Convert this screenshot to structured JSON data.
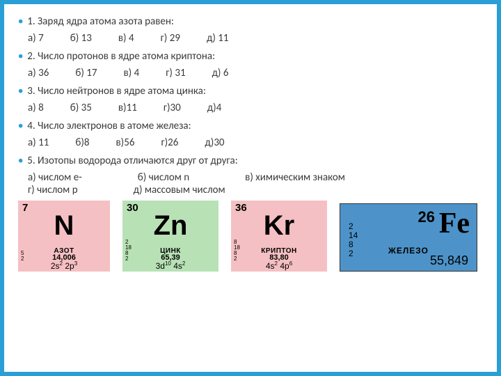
{
  "questions": [
    {
      "text": "1. Заряд ядра атома азота равен:",
      "options": [
        "а) 7",
        "б) 13",
        "в) 4",
        "г) 29",
        "д) 11"
      ]
    },
    {
      "text": "2. Число протонов в ядре атома криптона:",
      "options": [
        "а) 36",
        "б) 17",
        "в) 4",
        "г) 31",
        "д) 6"
      ]
    },
    {
      "text": "3. Число нейтронов в ядре атома цинка:",
      "options": [
        "а) 8",
        "б) 35",
        "в)11",
        "г)30",
        "д)4"
      ]
    },
    {
      "text": "4. Число электронов в атоме железа:",
      "options": [
        "а) 11",
        "б)8",
        "в)56",
        "г)26",
        "д)30"
      ]
    },
    {
      "text": "5. Изотопы водорода отличаются друг от друга:",
      "options_row1": [
        "а) числом е-",
        "б) числом n",
        "в) химическим знаком"
      ],
      "options_row2": [
        "г) числом р",
        "д) массовым числом"
      ]
    }
  ],
  "tiles": {
    "n": {
      "number": "7",
      "symbol": "N",
      "name": "АЗОТ",
      "mass": "14,006",
      "config_a": "2s",
      "config_a_sup": "2",
      "config_b": "2p",
      "config_b_sup": "3",
      "shells": [
        "5",
        "2"
      ],
      "bg_color": "#f5c0c3"
    },
    "zn": {
      "number": "30",
      "symbol": "Zn",
      "name": "ЦИНК",
      "mass": "65,39",
      "config_a": "3d",
      "config_a_sup": "10",
      "config_b": "4s",
      "config_b_sup": "2",
      "shells": [
        "2",
        "18",
        "8",
        "2"
      ],
      "bg_color": "#b8e2b5"
    },
    "kr": {
      "number": "36",
      "symbol": "Kr",
      "name": "КРИПТОН",
      "mass": "83,80",
      "config_a": "4s",
      "config_a_sup": "2",
      "config_b": "4p",
      "config_b_sup": "6",
      "shells": [
        "8",
        "18",
        "8",
        "2"
      ],
      "bg_color": "#f5c0c3"
    },
    "fe": {
      "number": "26",
      "symbol": "Fe",
      "name": "ЖЕЛЕЗО",
      "mass": "55,849",
      "shells": [
        "2",
        "14",
        "8",
        "2"
      ],
      "bg_color": "#4d93c9"
    }
  },
  "style": {
    "page_bg": "#2a9fd6",
    "slide_bg": "#ffffff",
    "bullet_color": "#2a9fd6",
    "text_color": "#3a3a3a",
    "body_fontsize": 15
  }
}
